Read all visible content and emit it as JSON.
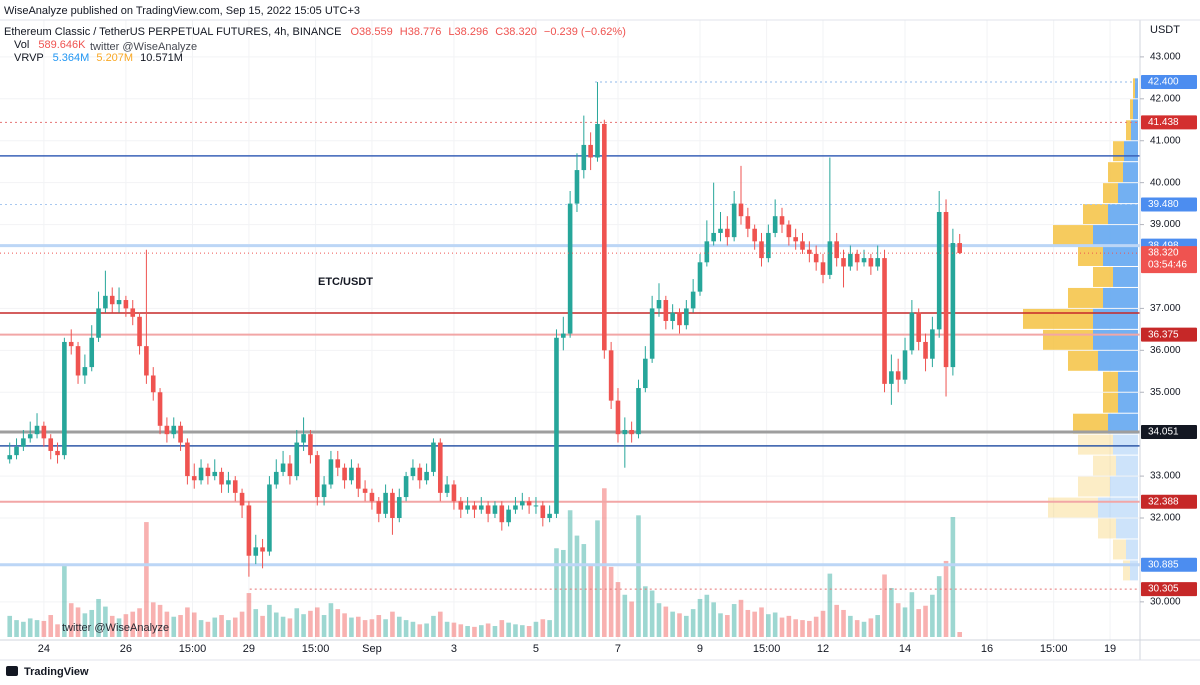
{
  "header": {
    "published": "WiseAnalyze published on TradingView.com, Sep 15, 2022 15:05 UTC+3",
    "footer": "TradingView"
  },
  "chart_data": {
    "type": "candlestick",
    "symbol": "Ethereum Classic / TetherUS PERPETUAL FUTURES, 4h, BINANCE",
    "ohlc_legend": [
      "O38.559",
      "H38.776",
      "L38.296",
      "C38.320",
      "−0.239 (−0.62%)"
    ],
    "vol_legend": {
      "name": "Vol",
      "value": "589.646K"
    },
    "vrvp_legend": {
      "name": "VRVP",
      "values": [
        "5.364M",
        "5.207M",
        "10.571M"
      ]
    },
    "annotation": "ETC/USDT",
    "watermark": "twitter @WiseAnalyze",
    "currency": "USDT",
    "up_color": "#26a69a",
    "down_color": "#ef5350",
    "grid": true,
    "x": [
      -0.833,
      -0.667,
      -0.5,
      -0.333,
      -0.167,
      0,
      0.167,
      0.333,
      0.5,
      0.667,
      0.833,
      1,
      1.167,
      1.333,
      1.5,
      1.667,
      1.833,
      2,
      2.167,
      2.333,
      2.5,
      2.667,
      2.833,
      3,
      3.167,
      3.333,
      3.5,
      3.667,
      3.833,
      4,
      4.167,
      4.333,
      4.5,
      4.667,
      4.833,
      5,
      5.167,
      5.333,
      5.5,
      5.667,
      5.833,
      6,
      6.167,
      6.333,
      6.5,
      6.667,
      6.833,
      7,
      7.167,
      7.333,
      7.5,
      7.667,
      7.833,
      8,
      8.167,
      8.333,
      8.5,
      8.667,
      8.833,
      9,
      9.167,
      9.333,
      9.5,
      9.667,
      9.833,
      10,
      10.167,
      10.333,
      10.5,
      10.667,
      10.833,
      11,
      11.167,
      11.333,
      11.5,
      11.667,
      11.833,
      12,
      12.167,
      12.333,
      12.5,
      12.667,
      12.833,
      13,
      13.167,
      13.333,
      13.5,
      13.667,
      13.833,
      14,
      14.167,
      14.333,
      14.5,
      14.667,
      14.833,
      15,
      15.167,
      15.333,
      15.5,
      15.667,
      15.833,
      16,
      16.167,
      16.333,
      16.5,
      16.667,
      16.833,
      17,
      17.167,
      17.333,
      17.5,
      17.667,
      17.833,
      18,
      18.167,
      18.333,
      18.5,
      18.667,
      18.833,
      19,
      19.167,
      19.333,
      19.5,
      19.667,
      19.833,
      20,
      20.167,
      20.333,
      20.5,
      20.667,
      20.833,
      21,
      21.167,
      21.333,
      21.5,
      21.667,
      21.833,
      22,
      22.167,
      22.333
    ],
    "open": [
      33.4,
      33.5,
      33.7,
      33.9,
      34.0,
      34.2,
      33.9,
      33.6,
      33.5,
      36.2,
      36.1,
      35.4,
      35.6,
      36.3,
      37.0,
      37.3,
      37.1,
      37.2,
      37.0,
      36.8,
      36.1,
      35.4,
      35.0,
      34.2,
      34.0,
      34.2,
      33.8,
      33.0,
      32.9,
      33.2,
      33.0,
      33.1,
      32.8,
      32.9,
      32.6,
      32.3,
      31.1,
      31.3,
      31.2,
      32.8,
      33.1,
      33.3,
      33.0,
      33.8,
      34.0,
      33.5,
      32.5,
      32.8,
      33.4,
      33.2,
      32.9,
      33.2,
      32.7,
      32.6,
      32.4,
      32.1,
      32.6,
      32.0,
      32.5,
      33.0,
      33.2,
      32.9,
      33.1,
      33.8,
      32.6,
      32.8,
      32.4,
      32.2,
      32.3,
      32.2,
      32.3,
      32.1,
      32.3,
      31.9,
      32.2,
      32.3,
      32.4,
      32.3,
      32.3,
      32.0,
      32.1,
      36.3,
      36.4,
      39.5,
      40.3,
      40.9,
      40.6,
      41.4,
      36.0,
      34.8,
      34.0,
      34.1,
      34.0,
      35.1,
      35.8,
      37.0,
      37.2,
      36.7,
      36.9,
      36.6,
      37.0,
      37.4,
      38.1,
      38.6,
      38.8,
      38.9,
      38.7,
      39.5,
      39.2,
      38.9,
      38.6,
      38.2,
      38.8,
      39.2,
      39.0,
      38.7,
      38.6,
      38.4,
      38.3,
      38.1,
      37.8,
      38.6,
      38.2,
      38.0,
      38.3,
      38.1,
      38.2,
      38.0,
      38.2,
      35.2,
      35.5,
      35.3,
      36.0,
      36.9,
      36.2,
      35.8,
      36.5,
      39.3,
      35.6,
      38.559
    ],
    "high": [
      33.8,
      33.9,
      34.1,
      34.3,
      34.5,
      34.3,
      34.0,
      33.8,
      36.3,
      36.5,
      36.2,
      35.9,
      36.6,
      37.4,
      37.9,
      37.5,
      37.5,
      37.3,
      37.2,
      36.9,
      38.4,
      35.6,
      35.1,
      34.4,
      34.4,
      34.3,
      33.9,
      33.3,
      33.4,
      33.3,
      33.4,
      33.2,
      33.1,
      33.0,
      32.7,
      32.4,
      31.6,
      31.5,
      33.0,
      33.4,
      33.6,
      33.5,
      34.1,
      34.4,
      34.1,
      33.6,
      33.0,
      33.6,
      33.6,
      33.3,
      33.4,
      33.3,
      32.9,
      32.7,
      32.5,
      32.8,
      32.7,
      32.7,
      33.1,
      33.4,
      33.3,
      33.3,
      33.9,
      33.9,
      33.0,
      32.9,
      32.5,
      32.5,
      32.4,
      32.5,
      32.4,
      32.4,
      32.4,
      32.3,
      32.5,
      32.6,
      32.5,
      32.5,
      32.4,
      32.3,
      36.5,
      36.8,
      39.8,
      40.7,
      41.6,
      41.2,
      42.4,
      41.5,
      36.2,
      35.1,
      34.4,
      34.3,
      35.3,
      36.1,
      37.3,
      37.6,
      37.3,
      37.1,
      37.0,
      37.2,
      37.7,
      38.3,
      39.1,
      40.0,
      39.3,
      39.2,
      39.8,
      40.4,
      39.4,
      39.0,
      38.8,
      39.0,
      39.6,
      39.4,
      39.1,
      38.9,
      38.8,
      38.6,
      38.5,
      38.3,
      40.6,
      38.8,
      38.4,
      38.5,
      38.4,
      38.4,
      38.3,
      38.5,
      38.4,
      35.9,
      35.8,
      36.3,
      37.2,
      37.0,
      36.4,
      36.8,
      39.8,
      39.6,
      38.9,
      38.776
    ],
    "low": [
      33.3,
      33.4,
      33.6,
      33.8,
      33.9,
      33.7,
      33.4,
      33.3,
      33.4,
      35.9,
      35.2,
      35.2,
      35.5,
      36.2,
      36.9,
      36.9,
      36.9,
      36.8,
      36.6,
      35.9,
      35.2,
      34.8,
      34.0,
      33.8,
      33.9,
      33.6,
      32.8,
      32.7,
      32.8,
      32.8,
      32.9,
      32.6,
      32.6,
      32.4,
      32.0,
      30.6,
      30.9,
      30.8,
      31.1,
      32.7,
      33.0,
      32.8,
      32.9,
      33.6,
      33.3,
      32.3,
      32.3,
      32.7,
      33.0,
      32.7,
      32.8,
      32.5,
      32.4,
      32.2,
      31.9,
      32.0,
      31.6,
      31.9,
      32.4,
      32.9,
      32.7,
      32.8,
      33.0,
      32.4,
      32.5,
      32.2,
      32.0,
      32.1,
      32.0,
      32.1,
      31.9,
      32.0,
      31.7,
      31.8,
      32.1,
      32.2,
      32.1,
      32.1,
      31.8,
      31.9,
      32.0,
      36.0,
      36.3,
      39.3,
      40.1,
      40.3,
      40.5,
      35.8,
      34.6,
      33.8,
      33.2,
      33.8,
      33.9,
      35.0,
      35.7,
      36.8,
      36.5,
      36.5,
      36.4,
      36.5,
      36.9,
      37.3,
      38.0,
      38.5,
      38.6,
      38.5,
      38.6,
      39.0,
      38.7,
      38.4,
      38.0,
      38.1,
      38.7,
      38.8,
      38.5,
      38.4,
      38.3,
      38.1,
      37.9,
      37.6,
      37.7,
      38.0,
      37.5,
      37.9,
      37.9,
      38.0,
      37.8,
      37.9,
      35.0,
      34.7,
      35.0,
      35.2,
      35.9,
      36.0,
      35.5,
      35.6,
      36.3,
      34.9,
      35.4,
      38.296
    ],
    "close": [
      33.5,
      33.7,
      33.9,
      34.0,
      34.2,
      33.9,
      33.6,
      33.5,
      36.2,
      36.1,
      35.4,
      35.6,
      36.3,
      37.0,
      37.3,
      37.1,
      37.2,
      37.0,
      36.8,
      36.1,
      35.4,
      35.0,
      34.2,
      34.0,
      34.2,
      33.8,
      33.0,
      32.9,
      33.2,
      33.0,
      33.1,
      32.8,
      32.9,
      32.6,
      32.3,
      31.1,
      31.3,
      31.2,
      32.8,
      33.1,
      33.3,
      33.0,
      33.8,
      34.0,
      33.5,
      32.5,
      32.8,
      33.4,
      33.2,
      32.9,
      33.2,
      32.7,
      32.6,
      32.4,
      32.1,
      32.6,
      32.0,
      32.5,
      33.0,
      33.2,
      32.9,
      33.1,
      33.8,
      32.6,
      32.8,
      32.4,
      32.2,
      32.3,
      32.2,
      32.3,
      32.1,
      32.3,
      31.9,
      32.2,
      32.3,
      32.4,
      32.3,
      32.3,
      32.0,
      32.1,
      36.3,
      36.4,
      39.5,
      40.3,
      40.9,
      40.6,
      41.4,
      36.0,
      34.8,
      34.0,
      34.1,
      34.0,
      35.1,
      35.8,
      37.0,
      37.2,
      36.7,
      36.9,
      36.6,
      37.0,
      37.4,
      38.1,
      38.6,
      38.8,
      38.9,
      38.7,
      39.5,
      39.2,
      38.9,
      38.6,
      38.2,
      38.8,
      39.2,
      39.0,
      38.7,
      38.6,
      38.4,
      38.3,
      38.1,
      37.8,
      38.6,
      38.2,
      38.0,
      38.3,
      38.1,
      38.2,
      38.0,
      38.2,
      35.2,
      35.5,
      35.3,
      36.0,
      36.9,
      36.2,
      35.8,
      36.5,
      39.3,
      35.6,
      38.56,
      38.32
    ],
    "volume": [
      2.5,
      2.0,
      1.8,
      2.2,
      2.0,
      1.9,
      2.6,
      1.5,
      8.4,
      4.0,
      3.5,
      2.8,
      3.2,
      4.5,
      3.6,
      2.5,
      2.2,
      2.7,
      3.0,
      3.4,
      13.6,
      4.1,
      3.8,
      3.0,
      2.4,
      2.6,
      3.5,
      2.9,
      2.0,
      1.8,
      2.3,
      2.6,
      2.0,
      2.3,
      3.0,
      5.2,
      3.3,
      2.5,
      3.8,
      2.9,
      2.4,
      2.2,
      3.4,
      2.7,
      3.1,
      3.5,
      2.6,
      4.0,
      3.3,
      2.8,
      2.3,
      2.4,
      2.0,
      2.1,
      2.6,
      2.1,
      3.0,
      2.4,
      2.0,
      1.8,
      1.5,
      1.6,
      2.5,
      3.0,
      1.8,
      1.7,
      1.5,
      1.3,
      1.2,
      1.4,
      1.6,
      1.3,
      2.0,
      1.7,
      1.5,
      1.4,
      1.3,
      1.8,
      2.1,
      2.0,
      10.5,
      10.3,
      15.0,
      12.0,
      11.0,
      8.5,
      13.8,
      17.6,
      8.3,
      6.5,
      5.0,
      4.2,
      14.4,
      6.0,
      5.5,
      4.0,
      3.6,
      3.0,
      2.8,
      2.5,
      3.3,
      4.5,
      5.0,
      4.1,
      2.8,
      2.6,
      3.9,
      4.4,
      3.2,
      3.0,
      3.5,
      2.7,
      2.9,
      2.3,
      2.5,
      2.1,
      2.0,
      1.9,
      2.4,
      3.1,
      7.5,
      3.8,
      3.2,
      2.5,
      2.0,
      1.8,
      2.2,
      2.6,
      7.4,
      5.8,
      4.0,
      3.5,
      5.3,
      3.3,
      3.7,
      5.0,
      7.2,
      9.0,
      14.2,
      0.589646
    ],
    "volume_lim": [
      0,
      20
    ],
    "xlim": [
      -1.07,
      26.73
    ],
    "xticks": [
      {
        "value": 0,
        "label": "24"
      },
      {
        "value": 2,
        "label": "26"
      },
      {
        "value": 3.625,
        "label": "15:00"
      },
      {
        "value": 5,
        "label": "29"
      },
      {
        "value": 6.625,
        "label": "15:00"
      },
      {
        "value": 8,
        "label": "Sep"
      },
      {
        "value": 10,
        "label": "3"
      },
      {
        "value": 12,
        "label": "5"
      },
      {
        "value": 14,
        "label": "7"
      },
      {
        "value": 16,
        "label": "9"
      },
      {
        "value": 17.625,
        "label": "15:00"
      },
      {
        "value": 19,
        "label": "12"
      },
      {
        "value": 21,
        "label": "14"
      },
      {
        "value": 23,
        "label": "16"
      },
      {
        "value": 24.625,
        "label": "15:00"
      },
      {
        "value": 26,
        "label": "19"
      }
    ],
    "ylim": [
      29.09,
      43.88
    ],
    "yticks": [
      {
        "value": 43,
        "label": "43.000"
      },
      {
        "value": 42,
        "label": "42.000"
      },
      {
        "value": 41,
        "label": "41.000"
      },
      {
        "value": 40,
        "label": "40.000"
      },
      {
        "value": 39,
        "label": "39.000"
      },
      {
        "value": 37,
        "label": "37.000"
      },
      {
        "value": 36,
        "label": "36.000"
      },
      {
        "value": 35,
        "label": "35.000"
      },
      {
        "value": 33,
        "label": "33.000"
      },
      {
        "value": 32,
        "label": "32.000"
      },
      {
        "value": 30,
        "label": "30.000"
      }
    ],
    "levels": [
      {
        "value": 42.4,
        "label": "42.400",
        "color": "#90b8e8",
        "width": 1,
        "style": "dotted",
        "tag": "#4c8df0",
        "from": 13.44
      },
      {
        "value": 41.438,
        "label": "41.438",
        "color": "#e57373",
        "width": 1,
        "style": "dotted",
        "tag": "#d32f2f"
      },
      {
        "value": 40.64,
        "color": "#3a62b8",
        "width": 1.5,
        "style": "solid"
      },
      {
        "value": 39.48,
        "label": "39.480",
        "color": "#a8c8f0",
        "width": 1,
        "style": "dotted",
        "tag": "#4c8df0"
      },
      {
        "value": 38.498,
        "label": "38.498",
        "color": "#bcd6f6",
        "width": 3,
        "style": "solid",
        "tag": "#4c8df0"
      },
      {
        "value": 36.89,
        "color": "#c62828",
        "width": 1.5,
        "style": "solid"
      },
      {
        "value": 36.375,
        "label": "36.375",
        "color": "#f2a6a6",
        "width": 2,
        "style": "solid",
        "tag": "#c62828"
      },
      {
        "value": 34.051,
        "label": "34.051",
        "color": "#9e9e9e",
        "width": 3,
        "style": "solid",
        "tag": "#131722"
      },
      {
        "value": 33.72,
        "color": "#2f58a8",
        "width": 1.5,
        "style": "solid"
      },
      {
        "value": 32.388,
        "label": "32.388",
        "color": "#f2a6a6",
        "width": 2,
        "style": "solid",
        "tag": "#c62828"
      },
      {
        "value": 30.885,
        "label": "30.885",
        "color": "#bcd6f6",
        "width": 3,
        "style": "solid",
        "tag": "#4c8df0"
      },
      {
        "value": 30.305,
        "label": "30.305",
        "color": "#e57373",
        "width": 1,
        "style": "dotted",
        "tag": "#c62828",
        "from": 5.02
      }
    ],
    "last": {
      "value": 38.32,
      "label": "38.320",
      "countdown": "03:54:46",
      "color": "#ef5350"
    },
    "volume_profile": {
      "bins": [
        30.5,
        31,
        31.5,
        32,
        32.5,
        33,
        33.5,
        34,
        34.5,
        35,
        35.5,
        36,
        36.5,
        37,
        37.5,
        38,
        38.5,
        39,
        39.5,
        40,
        40.5,
        41,
        41.5,
        42,
        42.5
      ],
      "up": [
        0.8,
        1.2,
        2.2,
        4.0,
        2.8,
        2.2,
        2.5,
        3.0,
        2.0,
        2.0,
        4.0,
        4.5,
        4.5,
        3.5,
        2.5,
        3.5,
        4.5,
        3.0,
        2.0,
        1.5,
        1.4,
        0.7,
        0.5,
        0.3
      ],
      "down": [
        0.7,
        1.3,
        1.8,
        5.0,
        3.2,
        2.3,
        3.5,
        3.5,
        1.5,
        1.5,
        3.0,
        5.0,
        7.0,
        3.5,
        2.0,
        2.5,
        4.0,
        2.5,
        1.5,
        1.5,
        1.1,
        0.5,
        0.3,
        0.2
      ],
      "lim": [
        0,
        12
      ],
      "value_area": [
        34,
        42.5
      ],
      "up_color": "#5ba2f0",
      "down_color": "#f5c242"
    }
  }
}
